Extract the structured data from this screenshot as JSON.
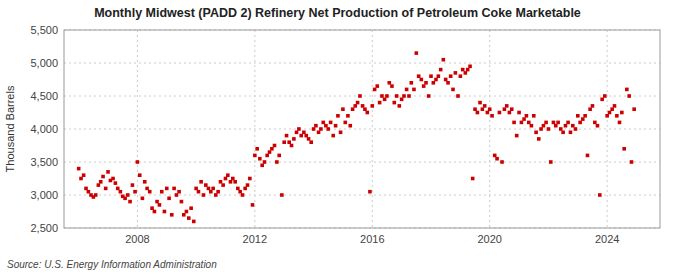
{
  "chart_data": {
    "type": "scatter",
    "title": "Monthly Midwest (PADD 2) Refinery Net Production of Petroleum Coke Marketable",
    "ylabel": "Thousand Barrels",
    "annotations": [
      "Source: U.S. Energy Information Administration"
    ],
    "color": "#cc0000",
    "marker": "square",
    "grid": true,
    "xlim": [
      2005.5,
      2025.8
    ],
    "xticks": [
      2008,
      2012,
      2016,
      2020,
      2024
    ],
    "ylim": [
      2500,
      5500
    ],
    "yticks": [
      {
        "value": 2500,
        "label": "2,500"
      },
      {
        "value": 3000,
        "label": "3,000"
      },
      {
        "value": 3500,
        "label": "3,500"
      },
      {
        "value": 4000,
        "label": "4,000"
      },
      {
        "value": 4500,
        "label": "4,500"
      },
      {
        "value": 5000,
        "label": "5,000"
      },
      {
        "value": 5500,
        "label": "5,500"
      }
    ],
    "x": [
      2006.0,
      2006.08,
      2006.17,
      2006.25,
      2006.33,
      2006.42,
      2006.5,
      2006.58,
      2006.67,
      2006.75,
      2006.83,
      2006.92,
      2007.0,
      2007.08,
      2007.17,
      2007.25,
      2007.33,
      2007.42,
      2007.5,
      2007.58,
      2007.67,
      2007.75,
      2007.83,
      2007.92,
      2008.0,
      2008.08,
      2008.17,
      2008.25,
      2008.33,
      2008.42,
      2008.5,
      2008.58,
      2008.67,
      2008.75,
      2008.83,
      2008.92,
      2009.0,
      2009.08,
      2009.17,
      2009.25,
      2009.33,
      2009.42,
      2009.5,
      2009.58,
      2009.67,
      2009.75,
      2009.83,
      2009.92,
      2010.0,
      2010.08,
      2010.17,
      2010.25,
      2010.33,
      2010.42,
      2010.5,
      2010.58,
      2010.67,
      2010.75,
      2010.83,
      2010.92,
      2011.0,
      2011.08,
      2011.17,
      2011.25,
      2011.33,
      2011.42,
      2011.5,
      2011.58,
      2011.67,
      2011.75,
      2011.83,
      2011.92,
      2012.0,
      2012.08,
      2012.17,
      2012.25,
      2012.33,
      2012.42,
      2012.5,
      2012.58,
      2012.67,
      2012.75,
      2012.83,
      2012.92,
      2013.0,
      2013.08,
      2013.17,
      2013.25,
      2013.33,
      2013.42,
      2013.5,
      2013.58,
      2013.67,
      2013.75,
      2013.83,
      2013.92,
      2014.0,
      2014.08,
      2014.17,
      2014.25,
      2014.33,
      2014.42,
      2014.5,
      2014.58,
      2014.67,
      2014.75,
      2014.83,
      2014.92,
      2015.0,
      2015.08,
      2015.17,
      2015.25,
      2015.33,
      2015.42,
      2015.5,
      2015.58,
      2015.67,
      2015.75,
      2015.83,
      2015.92,
      2016.0,
      2016.08,
      2016.17,
      2016.25,
      2016.33,
      2016.42,
      2016.5,
      2016.58,
      2016.67,
      2016.75,
      2016.83,
      2016.92,
      2017.0,
      2017.08,
      2017.17,
      2017.25,
      2017.33,
      2017.42,
      2017.5,
      2017.58,
      2017.67,
      2017.75,
      2017.83,
      2017.92,
      2018.0,
      2018.08,
      2018.17,
      2018.25,
      2018.33,
      2018.42,
      2018.5,
      2018.58,
      2018.67,
      2018.75,
      2018.83,
      2018.92,
      2019.0,
      2019.08,
      2019.17,
      2019.25,
      2019.33,
      2019.42,
      2019.5,
      2019.58,
      2019.67,
      2019.75,
      2019.83,
      2019.92,
      2020.0,
      2020.08,
      2020.17,
      2020.25,
      2020.33,
      2020.42,
      2020.5,
      2020.58,
      2020.67,
      2020.75,
      2020.83,
      2020.92,
      2021.0,
      2021.08,
      2021.17,
      2021.25,
      2021.33,
      2021.42,
      2021.5,
      2021.58,
      2021.67,
      2021.75,
      2021.83,
      2021.92,
      2022.0,
      2022.08,
      2022.17,
      2022.25,
      2022.33,
      2022.42,
      2022.5,
      2022.58,
      2022.67,
      2022.75,
      2022.83,
      2022.92,
      2023.0,
      2023.08,
      2023.17,
      2023.25,
      2023.33,
      2023.42,
      2023.5,
      2023.58,
      2023.67,
      2023.75,
      2023.83,
      2023.92,
      2024.0,
      2024.08,
      2024.17,
      2024.25,
      2024.33,
      2024.42,
      2024.5,
      2024.58,
      2024.67,
      2024.75,
      2024.83,
      2024.92
    ],
    "values": [
      3400,
      3250,
      3300,
      3100,
      3050,
      3000,
      2970,
      3000,
      3150,
      3200,
      3280,
      3100,
      3350,
      3220,
      3250,
      3180,
      3100,
      3050,
      2980,
      2950,
      3000,
      2900,
      3150,
      3050,
      3500,
      3300,
      2950,
      3200,
      3100,
      3050,
      2800,
      2750,
      2900,
      2850,
      3050,
      2750,
      3100,
      2950,
      2700,
      3100,
      3000,
      3050,
      2900,
      2700,
      2750,
      2650,
      2800,
      2600,
      3100,
      3050,
      3200,
      3000,
      3150,
      3100,
      3050,
      3100,
      3000,
      3050,
      3200,
      3150,
      3250,
      3300,
      3200,
      3250,
      3200,
      3100,
      3050,
      3000,
      3100,
      3150,
      3250,
      2850,
      3600,
      3700,
      3550,
      3450,
      3500,
      3600,
      3650,
      3700,
      3750,
      3500,
      3600,
      3000,
      3800,
      3900,
      3800,
      3750,
      3850,
      3950,
      4000,
      3900,
      3950,
      3900,
      3850,
      3800,
      4000,
      4050,
      3950,
      4000,
      4100,
      4050,
      4000,
      4100,
      3900,
      4050,
      4200,
      3950,
      4300,
      4100,
      4200,
      4050,
      4300,
      4350,
      4400,
      4500,
      4350,
      4300,
      4250,
      3050,
      4350,
      4600,
      4650,
      4400,
      4500,
      4450,
      4500,
      4700,
      4650,
      4400,
      4500,
      4350,
      4450,
      4500,
      4600,
      4500,
      4700,
      4600,
      5150,
      4800,
      4750,
      4650,
      4700,
      4500,
      4800,
      4700,
      4750,
      4800,
      4900,
      5050,
      4750,
      4700,
      4800,
      4600,
      4850,
      4500,
      4800,
      4900,
      4850,
      4900,
      4950,
      3250,
      4300,
      4250,
      4400,
      4300,
      4350,
      4250,
      4300,
      4200,
      3600,
      3550,
      4250,
      3500,
      4300,
      4350,
      4250,
      4300,
      4100,
      3900,
      4250,
      4100,
      4150,
      4200,
      4100,
      4050,
      4200,
      3950,
      3850,
      4000,
      4050,
      4100,
      4000,
      3500,
      4100,
      4050,
      4100,
      4000,
      3950,
      4050,
      4100,
      3950,
      4050,
      4000,
      4200,
      4100,
      4150,
      4200,
      3600,
      4300,
      4350,
      4100,
      4050,
      3000,
      4450,
      4500,
      4200,
      4250,
      4300,
      4350,
      4200,
      4100,
      4250,
      3700,
      4600,
      4500,
      3500,
      4300
    ]
  }
}
